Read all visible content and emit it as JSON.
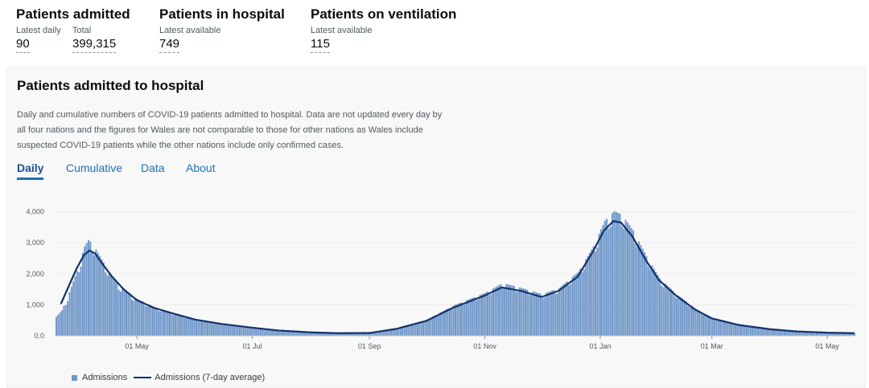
{
  "headlines": [
    {
      "title": "Patients admitted",
      "metrics": [
        {
          "label": "Latest daily",
          "value": "90"
        },
        {
          "label": "Total",
          "value": "399,315"
        }
      ]
    },
    {
      "title": "Patients in hospital",
      "metrics": [
        {
          "label": "Latest available",
          "value": "749"
        }
      ]
    },
    {
      "title": "Patients on ventilation",
      "metrics": [
        {
          "label": "Latest available",
          "value": "115"
        }
      ]
    }
  ],
  "card": {
    "title": "Patients admitted to hospital",
    "description": "Daily and cumulative numbers of COVID-19 patients admitted to hospital. Data are not updated every day by all four nations and the figures for Wales are not comparable to those for other nations as Wales include suspected COVID-19 patients while the other nations include only confirmed cases.",
    "tabs": [
      "Daily",
      "Cumulative",
      "Data",
      "About"
    ],
    "active_tab": "Daily"
  },
  "colors": {
    "bar": "#6f97c9",
    "line": "#12326b",
    "tab_link": "#1d70b8",
    "grid": "#ececec"
  },
  "chart_data": {
    "type": "bar",
    "x_start": "2020-03-19",
    "x_end": "2021-05-15",
    "xticks": [
      "01 May",
      "01 Jul",
      "01 Sep",
      "01 Nov",
      "01 Jan",
      "01 Mar",
      "01 May"
    ],
    "yticks": [
      "0.0",
      "1,000",
      "2,000",
      "3,000",
      "4,000"
    ],
    "ylim": [
      0,
      4300
    ],
    "grid": true,
    "legend_position": "bottom-left",
    "series": [
      {
        "name": "Admissions",
        "kind": "bar",
        "points": [
          [
            "2020-03-19",
            600
          ],
          [
            "2020-03-22",
            800
          ],
          [
            "2020-03-25",
            1200
          ],
          [
            "2020-03-28",
            1700
          ],
          [
            "2020-03-31",
            2200
          ],
          [
            "2020-04-03",
            2800
          ],
          [
            "2020-04-05",
            3000
          ],
          [
            "2020-04-07",
            2900
          ],
          [
            "2020-04-10",
            2600
          ],
          [
            "2020-04-14",
            2200
          ],
          [
            "2020-04-18",
            1800
          ],
          [
            "2020-04-24",
            1400
          ],
          [
            "2020-05-01",
            1150
          ],
          [
            "2020-05-10",
            900
          ],
          [
            "2020-05-20",
            720
          ],
          [
            "2020-06-01",
            520
          ],
          [
            "2020-06-15",
            380
          ],
          [
            "2020-07-01",
            280
          ],
          [
            "2020-07-15",
            180
          ],
          [
            "2020-08-01",
            120
          ],
          [
            "2020-08-15",
            90
          ],
          [
            "2020-09-01",
            110
          ],
          [
            "2020-09-15",
            250
          ],
          [
            "2020-10-01",
            500
          ],
          [
            "2020-10-15",
            950
          ],
          [
            "2020-11-01",
            1350
          ],
          [
            "2020-11-10",
            1650
          ],
          [
            "2020-11-20",
            1500
          ],
          [
            "2020-12-01",
            1300
          ],
          [
            "2020-12-10",
            1500
          ],
          [
            "2020-12-20",
            2000
          ],
          [
            "2020-12-28",
            2800
          ],
          [
            "2021-01-03",
            3600
          ],
          [
            "2021-01-08",
            3900
          ],
          [
            "2021-01-12",
            3800
          ],
          [
            "2021-01-18",
            3300
          ],
          [
            "2021-01-25",
            2500
          ],
          [
            "2021-02-01",
            1800
          ],
          [
            "2021-02-10",
            1300
          ],
          [
            "2021-02-20",
            850
          ],
          [
            "2021-03-01",
            560
          ],
          [
            "2021-03-15",
            350
          ],
          [
            "2021-04-01",
            210
          ],
          [
            "2021-04-15",
            140
          ],
          [
            "2021-05-01",
            100
          ],
          [
            "2021-05-15",
            90
          ]
        ]
      },
      {
        "name": "Admissions (7-day average)",
        "kind": "line",
        "points": [
          [
            "2020-03-22",
            1050
          ],
          [
            "2020-03-26",
            1600
          ],
          [
            "2020-03-30",
            2150
          ],
          [
            "2020-04-03",
            2600
          ],
          [
            "2020-04-06",
            2750
          ],
          [
            "2020-04-09",
            2650
          ],
          [
            "2020-04-13",
            2300
          ],
          [
            "2020-04-18",
            1900
          ],
          [
            "2020-04-24",
            1500
          ],
          [
            "2020-05-01",
            1150
          ],
          [
            "2020-05-10",
            900
          ],
          [
            "2020-05-20",
            720
          ],
          [
            "2020-06-01",
            520
          ],
          [
            "2020-06-15",
            380
          ],
          [
            "2020-07-01",
            260
          ],
          [
            "2020-07-15",
            170
          ],
          [
            "2020-08-01",
            110
          ],
          [
            "2020-08-15",
            85
          ],
          [
            "2020-09-01",
            90
          ],
          [
            "2020-09-15",
            220
          ],
          [
            "2020-10-01",
            480
          ],
          [
            "2020-10-15",
            900
          ],
          [
            "2020-11-01",
            1300
          ],
          [
            "2020-11-10",
            1560
          ],
          [
            "2020-11-20",
            1450
          ],
          [
            "2020-12-01",
            1250
          ],
          [
            "2020-12-10",
            1450
          ],
          [
            "2020-12-20",
            1900
          ],
          [
            "2020-12-28",
            2700
          ],
          [
            "2021-01-03",
            3400
          ],
          [
            "2021-01-08",
            3700
          ],
          [
            "2021-01-12",
            3650
          ],
          [
            "2021-01-18",
            3200
          ],
          [
            "2021-01-25",
            2450
          ],
          [
            "2021-02-01",
            1800
          ],
          [
            "2021-02-10",
            1300
          ],
          [
            "2021-02-20",
            850
          ],
          [
            "2021-03-01",
            560
          ],
          [
            "2021-03-15",
            350
          ],
          [
            "2021-04-01",
            210
          ],
          [
            "2021-04-15",
            140
          ],
          [
            "2021-05-01",
            100
          ],
          [
            "2021-05-15",
            85
          ]
        ]
      }
    ]
  }
}
